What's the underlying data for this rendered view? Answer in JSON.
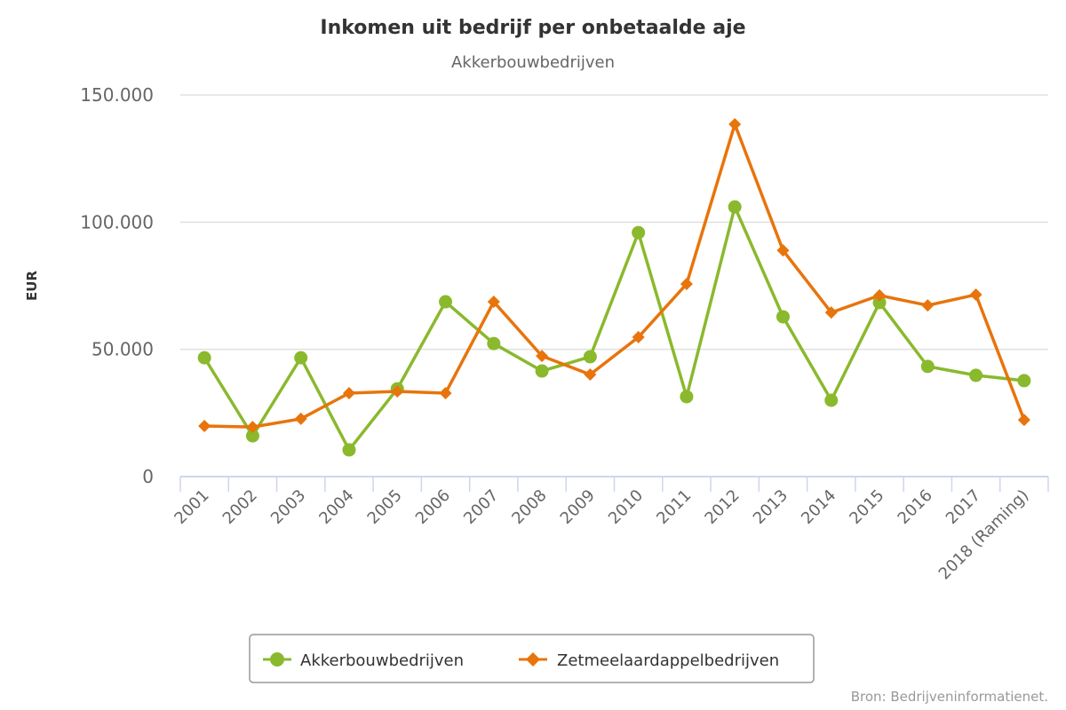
{
  "chart_data": {
    "type": "line",
    "title": "Inkomen uit bedrijf per onbetaalde aje",
    "subtitle": "Akkerbouwbedrijven",
    "xlabel": "",
    "ylabel": "EUR",
    "ylim": [
      0,
      150000
    ],
    "yticks": [
      0,
      50000,
      100000,
      150000
    ],
    "ytick_labels": [
      "0",
      "50.000",
      "100.000",
      "150.000"
    ],
    "grid": true,
    "legend_position": "bottom-center",
    "categories": [
      "2001",
      "2002",
      "2003",
      "2004",
      "2005",
      "2006",
      "2007",
      "2008",
      "2009",
      "2010",
      "2011",
      "2012",
      "2013",
      "2014",
      "2015",
      "2016",
      "2017",
      "2018 (Raming)"
    ],
    "series": [
      {
        "name": "Akkerbouwbedrijven",
        "color": "#8ab92d",
        "marker": "circle",
        "values": [
          46700,
          16000,
          46700,
          10500,
          34500,
          68700,
          52300,
          41500,
          47100,
          95900,
          31400,
          106000,
          62800,
          30000,
          68400,
          43300,
          39800,
          37700
        ]
      },
      {
        "name": "Zetmeelaardappelbedrijven",
        "color": "#e8740c",
        "marker": "diamond",
        "values": [
          19900,
          19500,
          22700,
          32800,
          33500,
          32800,
          68700,
          47400,
          40100,
          54800,
          75700,
          138500,
          88900,
          64500,
          71200,
          67300,
          71500,
          22300
        ]
      }
    ],
    "credit": "Bron: Bedrijveninformatienet."
  }
}
